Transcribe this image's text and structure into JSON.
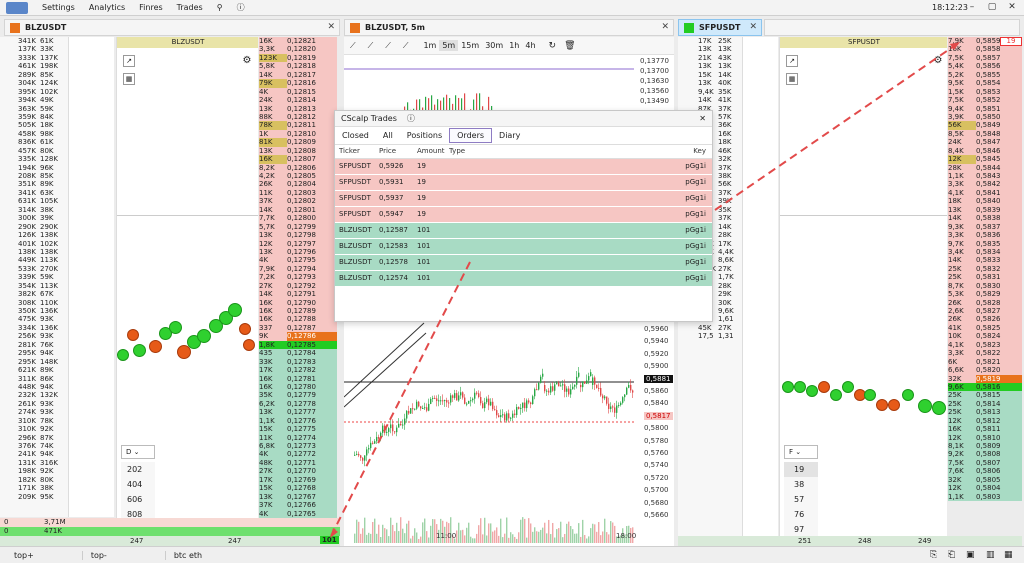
{
  "menubar": {
    "items": [
      "Settings",
      "Analytics",
      "Finres",
      "Trades"
    ],
    "time": "18:12:23"
  },
  "panels": {
    "left": {
      "title": "BLZUSDT",
      "label": "BLZUSDT",
      "color": "#e8721c",
      "vol_rows": [
        "341K",
        "137K",
        "333K",
        "461K",
        "289K",
        "304K",
        "395K",
        "394K",
        "363K",
        "359K",
        "505K",
        "458K",
        "836K",
        "457K",
        "335K",
        "194K",
        "208K",
        "351K",
        "341K",
        "631K",
        "314K",
        "300K",
        "290K",
        "126K",
        "401K",
        "138K",
        "449K",
        "533K",
        "339K",
        "354K",
        "382K",
        "308K",
        "350K",
        "475K",
        "334K",
        "256K",
        "281K",
        "295K",
        "295K",
        "621K",
        "311K",
        "448K",
        "232K",
        "261K",
        "274K",
        "310K",
        "310K",
        "296K",
        "376K",
        "241K",
        "131K",
        "198K",
        "182K",
        "171K",
        "209K",
        "0",
        "0"
      ],
      "vol2_rows": [
        "61K",
        "33K",
        "137K",
        "198K",
        "85K",
        "124K",
        "102K",
        "49K",
        "59K",
        "84K",
        "18K",
        "98K",
        "61K",
        "80K",
        "128K",
        "96K",
        "85K",
        "89K",
        "63K",
        "105K",
        "38K",
        "39K",
        "290K",
        "138K",
        "102K",
        "138K",
        "113K",
        "270K",
        "59K",
        "113K",
        "67K",
        "110K",
        "136K",
        "93K",
        "136K",
        "93K",
        "76K",
        "94K",
        "148K",
        "89K",
        "86K",
        "94K",
        "132K",
        "93K",
        "93K",
        "78K",
        "92K",
        "87K",
        "74K",
        "94K",
        "316K",
        "92K",
        "80K",
        "38K",
        "95K",
        "3,71M",
        "471K"
      ],
      "dropdown": "D",
      "list_values": [
        "202",
        "404",
        "606",
        "808",
        "101"
      ],
      "footer": [
        "247",
        "247"
      ],
      "ask_prices": [
        "0,12821",
        "0,12820",
        "0,12819",
        "0,12818",
        "0,12817",
        "0,12816",
        "0,12815",
        "0,12814",
        "0,12813",
        "0,12812",
        "0,12811",
        "0,12810",
        "0,12809",
        "0,12808",
        "0,12807",
        "0,12806",
        "0,12805",
        "0,12804",
        "0,12803",
        "0,12802",
        "0,12801",
        "0,12800",
        "0,12799",
        "0,12798",
        "0,12797",
        "0,12796",
        "0,12795",
        "0,12794",
        "0,12793",
        "0,12792",
        "0,12791",
        "0,12790",
        "0,12789",
        "0,12788",
        "0,12787",
        "0,12786"
      ],
      "bid_prices": [
        "0,12785",
        "0,12784",
        "0,12783",
        "0,12782",
        "0,12781",
        "0,12780",
        "0,12779",
        "0,12778",
        "0,12777",
        "0,12776",
        "0,12775",
        "0,12774",
        "0,12773",
        "0,12772",
        "0,12771",
        "0,12770",
        "0,12769",
        "0,12768",
        "0,12767",
        "0,12766",
        "0,12765",
        "0,12764",
        "0,12763"
      ],
      "ask_vols": [
        "16K",
        "3,3K",
        "123K",
        "5,8K",
        "14K",
        "79K",
        "4K",
        "24K",
        "13K",
        "88K",
        "78K",
        "1K",
        "81K",
        "13K",
        "16K",
        "8,2K",
        "4,2K",
        "26K",
        "11K",
        "37K",
        "14K",
        "7,7K",
        "5,7K",
        "13K",
        "12K",
        "13K",
        "4K",
        "7,9K",
        "7,2K",
        "27K",
        "14K",
        "16K",
        "16K",
        "16K",
        "337",
        "9K"
      ],
      "bid_vols": [
        "1,8K",
        "435",
        "33K",
        "17K",
        "16K",
        "16K",
        "35K",
        "6,2K",
        "13K",
        "1,1K",
        "15K",
        "11K",
        "6,8K",
        "4K",
        "48K",
        "27K",
        "17K",
        "15K",
        "13K",
        "37K",
        "4K",
        "20K",
        "11K"
      ],
      "last_volume": "101"
    },
    "middle": {
      "title": "BLZUSDT, 5m",
      "color": "#e8721c",
      "timeframes": [
        "1m",
        "5m",
        "15m",
        "30m",
        "1h",
        "4h"
      ],
      "active_tf": "5m",
      "time_labels": [
        "11:00",
        "18:00"
      ]
    },
    "right": {
      "title": "SFPUSDT",
      "label": "SFPUSDT",
      "color": "#22cc22",
      "vol_rows": [
        "17K",
        "13K",
        "21K",
        "13K",
        "15K",
        "13K",
        "9,4K",
        "14K",
        "87K",
        "45K",
        "29K",
        "25K",
        "61K",
        "24K",
        "69K",
        "30K",
        "50K",
        "32K",
        "48K",
        "23K",
        "23K",
        "56K",
        "10K",
        "10K",
        "9,7K",
        "7,4K",
        "554",
        "112K",
        "16K",
        "56K",
        "39K",
        "11K",
        "11K",
        "1,42",
        "45K",
        "17,5"
      ],
      "vol2_rows": [
        "25K",
        "13K",
        "43K",
        "13K",
        "14K",
        "40K",
        "35K",
        "41K",
        "37K",
        "57K",
        "36K",
        "16K",
        "18K",
        "46K",
        "32K",
        "37K",
        "38K",
        "56K",
        "37K",
        "39K",
        "35K",
        "37K",
        "14K",
        "28K",
        "17K",
        "4,4K",
        "8,6K",
        "27K",
        "1,7K",
        "28K",
        "29K",
        "30K",
        "9,6K",
        "1,61",
        "27K",
        "1,31"
      ],
      "dropdown": "F",
      "list_values": [
        "19",
        "38",
        "57",
        "76",
        "97"
      ],
      "footer": [
        "251",
        "248",
        "249"
      ],
      "ask_prices": [
        "0,5859",
        "0,5858",
        "0,5857",
        "0,5856",
        "0,5855",
        "0,5854",
        "0,5853",
        "0,5852",
        "0,5851",
        "0,5850",
        "0,5849",
        "0,5848",
        "0,5847",
        "0,5846",
        "0,5845",
        "0,5844",
        "0,5843",
        "0,5842",
        "0,5841",
        "0,5840",
        "0,5839",
        "0,5838",
        "0,5837",
        "0,5836",
        "0,5835",
        "0,5834",
        "0,5833",
        "0,5832",
        "0,5831",
        "0,5830",
        "0,5829",
        "0,5828",
        "0,5827",
        "0,5826",
        "0,5825",
        "0,5824",
        "0,5823",
        "0,5822",
        "0,5821",
        "0,5820",
        "0,5819",
        "0,5818",
        "0,5817"
      ],
      "bid_prices": [
        "0,5816",
        "0,5815",
        "0,5814",
        "0,5813",
        "0,5812",
        "0,5811",
        "0,5810",
        "0,5809",
        "0,5808",
        "0,5807",
        "0,5806",
        "0,5805",
        "0,5804",
        "0,5803"
      ],
      "ask_vols": [
        "7,9K",
        "16K",
        "7,5K",
        "5,4K",
        "5,2K",
        "9,5K",
        "1,5K",
        "7,5K",
        "9,4K",
        "3,9K",
        "56K",
        "8,5K",
        "24K",
        "8,4K",
        "12K",
        "28K",
        "1,1K",
        "3,3K",
        "4,1K",
        "18K",
        "13K",
        "14K",
        "9,3K",
        "3,3K",
        "9,7K",
        "3,4K",
        "14K",
        "25K",
        "25K",
        "8,7K",
        "5,3K",
        "26K",
        "2,6K",
        "26K",
        "41K",
        "10K",
        "4,1K",
        "3,3K",
        "6K",
        "6,6K",
        "32K"
      ],
      "bid_vols": [
        "9,6K",
        "25K",
        "25K",
        "25K",
        "12K",
        "16K",
        "12K",
        "8,1K",
        "9,2K",
        "7,5K",
        "7,6K",
        "32K",
        "12K",
        "1,1K"
      ],
      "last_volume": "19"
    }
  },
  "trades_popup": {
    "title": "CScalp Trades",
    "tabs": [
      "Closed",
      "All",
      "Positions",
      "Orders",
      "Diary"
    ],
    "active_tab": "Orders",
    "columns": [
      "Ticker",
      "Price",
      "Amount",
      "Type",
      "Key"
    ],
    "rows": [
      {
        "ticker": "SFPUSDT",
        "price": "0,5926",
        "amount": "19",
        "key": "pGg1i",
        "side": "sell"
      },
      {
        "ticker": "SFPUSDT",
        "price": "0,5931",
        "amount": "19",
        "key": "pGg1i",
        "side": "sell"
      },
      {
        "ticker": "SFPUSDT",
        "price": "0,5937",
        "amount": "19",
        "key": "pGg1i",
        "side": "sell"
      },
      {
        "ticker": "SFPUSDT",
        "price": "0,5947",
        "amount": "19",
        "key": "pGg1i",
        "side": "sell"
      },
      {
        "ticker": "BLZUSDT",
        "price": "0,12587",
        "amount": "101",
        "key": "pGg1i",
        "side": "buy"
      },
      {
        "ticker": "BLZUSDT",
        "price": "0,12583",
        "amount": "101",
        "key": "pGg1i",
        "side": "buy"
      },
      {
        "ticker": "BLZUSDT",
        "price": "0,12578",
        "amount": "101",
        "key": "pGg1i",
        "side": "buy"
      },
      {
        "ticker": "BLZUSDT",
        "price": "0,12574",
        "amount": "101",
        "key": "pGg1i",
        "side": "buy"
      }
    ]
  },
  "chart": {
    "upper_prices": [
      "0,13770",
      "0,13700",
      "0,13630",
      "0,13560",
      "0,13490"
    ],
    "lower_prices": [
      "0,5960",
      "0,5940",
      "0,5920",
      "0,5900",
      "0,5881",
      "0,5860",
      "0,5840",
      "0,5817",
      "0,5800",
      "0,5780",
      "0,5760",
      "0,5740",
      "0,5720",
      "0,5700",
      "0,5680",
      "0,5660"
    ],
    "last_price": "0,5881",
    "marked_price": "0,5817"
  },
  "bottombar": {
    "tabs": [
      "top+",
      "top-",
      "btc eth"
    ]
  }
}
